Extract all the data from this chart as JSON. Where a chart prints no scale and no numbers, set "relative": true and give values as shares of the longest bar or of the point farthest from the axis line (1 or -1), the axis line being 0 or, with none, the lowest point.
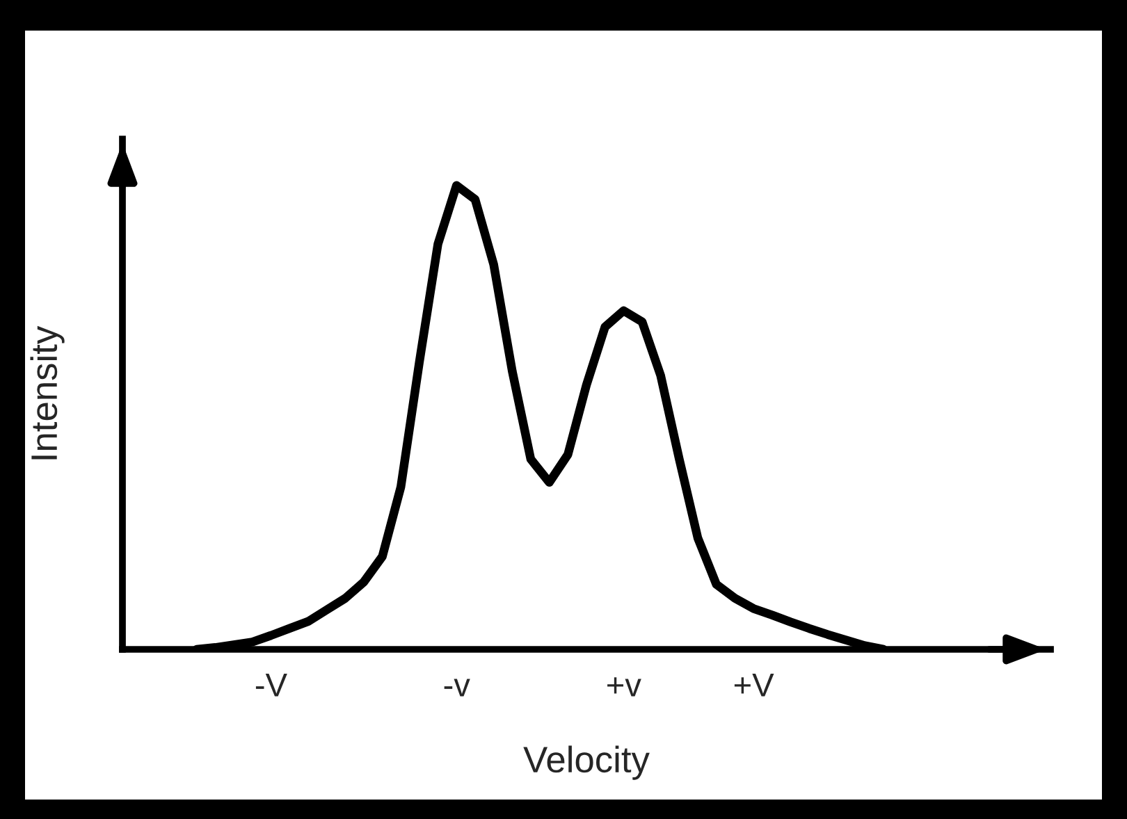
{
  "chart_data": {
    "type": "line",
    "relative": true,
    "xlabel": "Velocity",
    "ylabel": "Intensity",
    "categories": [
      null,
      null,
      null,
      null,
      null,
      null,
      null,
      null,
      "-V",
      null,
      null,
      null,
      null,
      null,
      null,
      null,
      null,
      null,
      "-v",
      null,
      null,
      null,
      null,
      null,
      null,
      null,
      null,
      "+v",
      null,
      null,
      null,
      null,
      null,
      null,
      "+V",
      null,
      null,
      null,
      null,
      null,
      null,
      null,
      null,
      null,
      null,
      null,
      null,
      null,
      null,
      null,
      null
    ],
    "series": [
      {
        "color": "#000000",
        "values": [
          null,
          null,
          null,
          null,
          0,
          0.004,
          0.01,
          0.016,
          0.03,
          0.045,
          0.06,
          0.085,
          0.11,
          0.145,
          0.2,
          0.35,
          0.62,
          0.874,
          1,
          0.97,
          0.83,
          0.6,
          0.41,
          0.36,
          0.42,
          0.57,
          0.695,
          0.73,
          0.706,
          0.59,
          0.41,
          0.24,
          0.14,
          0.11,
          0.088,
          0.074,
          0.059,
          0.045,
          0.032,
          0.02,
          0.008,
          0,
          null,
          null,
          null,
          null,
          null,
          null,
          null,
          null,
          null
        ]
      }
    ],
    "tick_labels": "x",
    "grid": false,
    "marker": "none",
    "line_style": "solid"
  }
}
